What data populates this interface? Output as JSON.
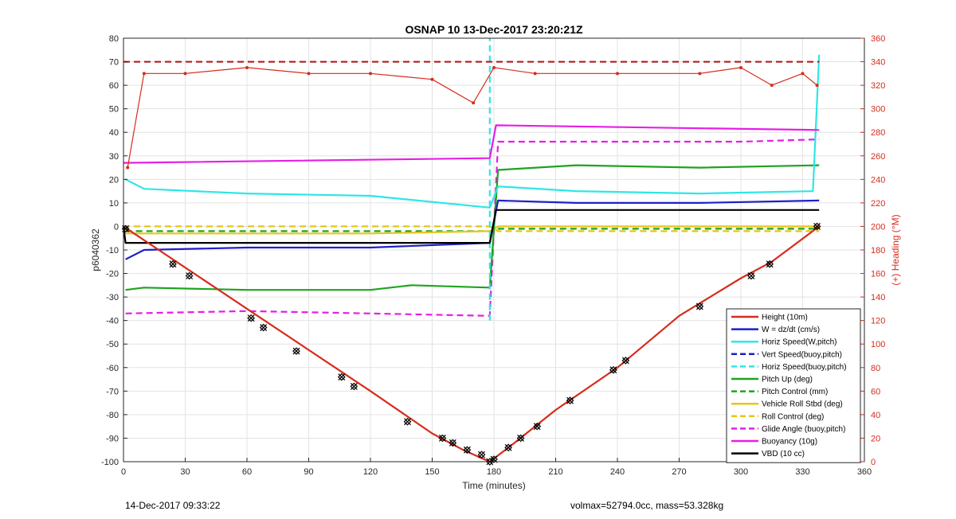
{
  "chart_data": {
    "type": "line",
    "title": "OSNAP 10 13-Dec-2017 23:20:21Z",
    "xlabel": "Time (minutes)",
    "ylabel": "p6040362",
    "ylabel_right": "(+) Heading (°M)",
    "xlim": [
      0,
      360
    ],
    "ylim": [
      -100,
      80
    ],
    "ylim_right": [
      0,
      360
    ],
    "xticks": [
      0,
      30,
      60,
      90,
      120,
      150,
      180,
      210,
      240,
      270,
      300,
      330,
      360
    ],
    "yticks": [
      80,
      70,
      60,
      50,
      40,
      30,
      20,
      10,
      0,
      -10,
      -20,
      -30,
      -40,
      -50,
      -60,
      -70,
      -80,
      -90,
      -100
    ],
    "yticks_right": [
      360,
      340,
      320,
      300,
      280,
      260,
      240,
      220,
      200,
      180,
      160,
      140,
      120,
      100,
      80,
      60,
      40,
      20,
      0
    ],
    "grid": true,
    "legend_position": "bottom-right",
    "legend": [
      {
        "name": "Height (10m)",
        "color": "#d62c1c",
        "style": "solid"
      },
      {
        "name": "W = dz/dt (cm/s)",
        "color": "#1f1fc8",
        "style": "solid"
      },
      {
        "name": "Horiz Speed(W,pitch)",
        "color": "#2ee6e6",
        "style": "solid"
      },
      {
        "name": "Vert Speed(buoy,pitch)",
        "color": "#1f1fc8",
        "style": "dashed"
      },
      {
        "name": "Horiz Speed(buoy,pitch)",
        "color": "#2ee6e6",
        "style": "dashed"
      },
      {
        "name": "Pitch Up (deg)",
        "color": "#1fa31f",
        "style": "solid"
      },
      {
        "name": "Pitch Control (mm)",
        "color": "#1fa31f",
        "style": "dashed"
      },
      {
        "name": "Vehicle Roll Stbd (deg)",
        "color": "#e6c619",
        "style": "solid"
      },
      {
        "name": "Roll Control (deg)",
        "color": "#e6c619",
        "style": "dashed"
      },
      {
        "name": "Glide Angle (buoy,pitch)",
        "color": "#e61ee6",
        "style": "dashed"
      },
      {
        "name": "Buoyancy (10g)",
        "color": "#e61ee6",
        "style": "solid"
      },
      {
        "name": "VBD (10 cc)",
        "color": "#000000",
        "style": "solid"
      }
    ],
    "series": [
      {
        "name": "Height (10m)",
        "x": [
          0,
          60,
          120,
          150,
          165,
          178,
          181,
          190,
          210,
          240,
          270,
          300,
          315,
          338
        ],
        "y": [
          0,
          -35,
          -70,
          -88,
          -95,
          -100,
          -98,
          -92,
          -78,
          -60,
          -38,
          -22,
          -15,
          0
        ]
      },
      {
        "name": "W = dz/dt (cm/s)",
        "x": [
          1,
          10,
          60,
          120,
          178,
          182,
          220,
          280,
          338
        ],
        "y": [
          -14,
          -10,
          -9,
          -9,
          -7,
          11,
          10,
          10,
          11
        ]
      },
      {
        "name": "Horiz Speed(W,pitch)",
        "x": [
          1,
          10,
          60,
          120,
          178,
          182,
          220,
          280,
          335,
          338
        ],
        "y": [
          20,
          16,
          14,
          13,
          8,
          17,
          15,
          14,
          15,
          73
        ]
      },
      {
        "name": "Pitch Up (deg)",
        "x": [
          1,
          10,
          60,
          120,
          140,
          178,
          182,
          220,
          280,
          338
        ],
        "y": [
          -27,
          -26,
          -27,
          -27,
          -25,
          -26,
          24,
          26,
          25,
          26
        ]
      },
      {
        "name": "Pitch Control (mm)",
        "x": [
          1,
          179,
          181,
          338
        ],
        "y": [
          -2,
          -2,
          -1,
          -1
        ]
      },
      {
        "name": "Vehicle Roll Stbd (deg)",
        "x": [
          0,
          60,
          120,
          178,
          182,
          240,
          300,
          338
        ],
        "y": [
          -3,
          -3,
          -3,
          -2,
          0,
          0,
          0,
          0
        ]
      },
      {
        "name": "Roll Control (deg)",
        "x": [
          0,
          60,
          120,
          178,
          182,
          240,
          300,
          338
        ],
        "y": [
          0,
          0,
          0,
          0,
          -2,
          -2,
          -2,
          -2
        ]
      },
      {
        "name": "Glide Angle (buoy,pitch)",
        "x": [
          1,
          60,
          120,
          178,
          182,
          240,
          300,
          338
        ],
        "y": [
          -37,
          -36,
          -37,
          -38,
          36,
          36,
          36,
          37
        ]
      },
      {
        "name": "Buoyancy (10g)",
        "x": [
          0,
          178,
          181,
          338
        ],
        "y": [
          27,
          29,
          43,
          41
        ]
      },
      {
        "name": "VBD (10 cc)",
        "x": [
          0,
          1,
          178,
          181,
          338
        ],
        "y": [
          0,
          -7,
          -7,
          7,
          7
        ]
      },
      {
        "name": "Horiz Speed(buoy,pitch)",
        "x": [
          178,
          178
        ],
        "y": [
          -40,
          80
        ]
      },
      {
        "name": "Heading",
        "axis": "right",
        "x": [
          2,
          10,
          30,
          60,
          90,
          120,
          150,
          170,
          180,
          200,
          240,
          280,
          300,
          315,
          330,
          337
        ],
        "y": [
          250,
          330,
          330,
          335,
          330,
          330,
          325,
          305,
          335,
          330,
          330,
          330,
          335,
          320,
          330,
          320
        ]
      },
      {
        "name": "Heading Control",
        "axis": "right",
        "x": [
          0,
          338
        ],
        "y": [
          340,
          340
        ]
      }
    ],
    "markers": {
      "x": [
        1,
        24,
        32,
        62,
        68,
        84,
        106,
        112,
        138,
        155,
        160,
        167,
        174,
        178,
        180,
        187,
        193,
        201,
        217,
        238,
        244,
        280,
        305,
        314,
        337
      ],
      "y": [
        -1,
        -16,
        -21,
        -39,
        -43,
        -53,
        -64,
        -68,
        -83,
        -90,
        -92,
        -95,
        -97,
        -100,
        -99,
        -94,
        -90,
        -85,
        -74,
        -61,
        -57,
        -34,
        -21,
        -16,
        0
      ]
    }
  },
  "footer": {
    "left": "14-Dec-2017 09:33:22",
    "right": "volmax=52794.0cc, mass=53.328kg"
  }
}
